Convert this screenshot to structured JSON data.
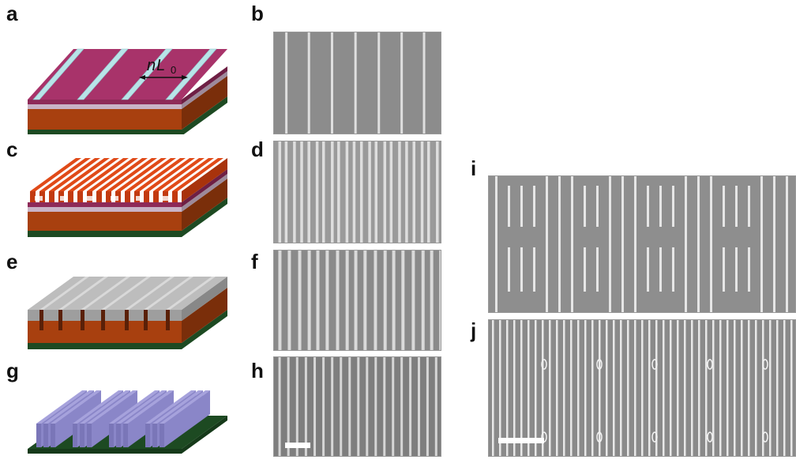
{
  "panel_labels": {
    "a": "a",
    "b": "b",
    "c": "c",
    "d": "d",
    "e": "e",
    "f": "f",
    "g": "g",
    "h": "h",
    "i": "i",
    "j": "j"
  },
  "annotation_a": {
    "italic_n": "n",
    "italic_L": "L",
    "subscript": "0"
  },
  "colors": {
    "magenta_layer": "#a8336a",
    "rust_layer": "#a8400f",
    "orange_lines": "#e04a18",
    "gray_layer": "#bdbdbd",
    "purple_lines": "#8a86c8",
    "green_substrate": "#1d4a22",
    "guide_stripe": "#b8e4e8",
    "sem_bg": "#8f8f8f",
    "sem_line": "#ececec"
  }
}
